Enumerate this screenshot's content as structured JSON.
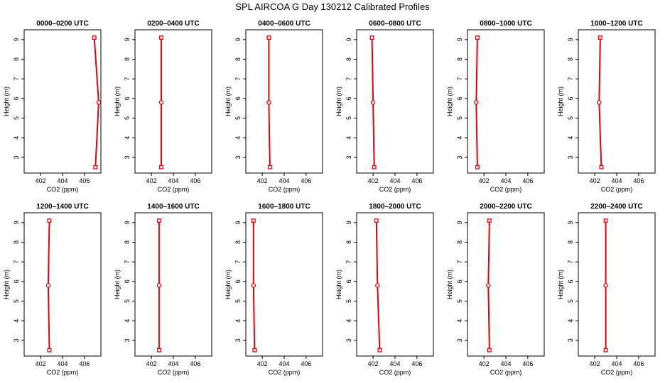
{
  "title": "SPL AIRCOA G  Day 130212  Calibrated Profiles",
  "colors": {
    "line": "#e8000b",
    "marker": "#e8000b",
    "axes": "#000000"
  },
  "chart_data": [
    {
      "type": "line",
      "title": "0000–0200 UTC",
      "xlabel": "CO2 (ppm)",
      "ylabel": "Height (m)",
      "xlim": [
        400.5,
        407.5
      ],
      "ylim": [
        2.2,
        9.5
      ],
      "xticks": [
        402,
        404,
        406
      ],
      "yticks": [
        3,
        4,
        5,
        6,
        7,
        8,
        9
      ],
      "series": [
        {
          "x": [
            406.9,
            407.3,
            407.0
          ],
          "y": [
            9.1,
            5.8,
            2.5
          ]
        }
      ]
    },
    {
      "type": "line",
      "title": "0200–0400 UTC",
      "xlabel": "CO2 (ppm)",
      "ylabel": "Height (m)",
      "xlim": [
        400.5,
        407.5
      ],
      "ylim": [
        2.2,
        9.5
      ],
      "xticks": [
        402,
        404,
        406
      ],
      "yticks": [
        3,
        4,
        5,
        6,
        7,
        8,
        9
      ],
      "series": [
        {
          "x": [
            402.9,
            402.9,
            402.9
          ],
          "y": [
            9.1,
            5.8,
            2.5
          ]
        }
      ]
    },
    {
      "type": "line",
      "title": "0400–0600 UTC",
      "xlabel": "CO2 (ppm)",
      "ylabel": "Height (m)",
      "xlim": [
        400.5,
        407.5
      ],
      "ylim": [
        2.2,
        9.5
      ],
      "xticks": [
        402,
        404,
        406
      ],
      "yticks": [
        3,
        4,
        5,
        6,
        7,
        8,
        9
      ],
      "series": [
        {
          "x": [
            402.6,
            402.6,
            402.7
          ],
          "y": [
            9.1,
            5.8,
            2.5
          ]
        }
      ]
    },
    {
      "type": "line",
      "title": "0600–0800 UTC",
      "xlabel": "CO2 (ppm)",
      "ylabel": "Height (m)",
      "xlim": [
        400.5,
        407.5
      ],
      "ylim": [
        2.2,
        9.5
      ],
      "xticks": [
        402,
        404,
        406
      ],
      "yticks": [
        3,
        4,
        5,
        6,
        7,
        8,
        9
      ],
      "series": [
        {
          "x": [
            401.9,
            402.0,
            402.1
          ],
          "y": [
            9.1,
            5.8,
            2.5
          ]
        }
      ]
    },
    {
      "type": "line",
      "title": "0800–1000 UTC",
      "xlabel": "CO2 (ppm)",
      "ylabel": "Height (m)",
      "xlim": [
        400.5,
        407.5
      ],
      "ylim": [
        2.2,
        9.5
      ],
      "xticks": [
        402,
        404,
        406
      ],
      "yticks": [
        3,
        4,
        5,
        6,
        7,
        8,
        9
      ],
      "series": [
        {
          "x": [
            401.4,
            401.3,
            401.4
          ],
          "y": [
            9.1,
            5.8,
            2.5
          ]
        }
      ]
    },
    {
      "type": "line",
      "title": "1000–1200 UTC",
      "xlabel": "CO2 (ppm)",
      "ylabel": "Height (m)",
      "xlim": [
        400.5,
        407.5
      ],
      "ylim": [
        2.2,
        9.5
      ],
      "xticks": [
        402,
        404,
        406
      ],
      "yticks": [
        3,
        4,
        5,
        6,
        7,
        8,
        9
      ],
      "series": [
        {
          "x": [
            402.5,
            402.4,
            402.6
          ],
          "y": [
            9.1,
            5.8,
            2.5
          ]
        }
      ]
    },
    {
      "type": "line",
      "title": "1200–1400 UTC",
      "xlabel": "CO2 (ppm)",
      "ylabel": "Height (m)",
      "xlim": [
        400.5,
        407.5
      ],
      "ylim": [
        2.2,
        9.5
      ],
      "xticks": [
        402,
        404,
        406
      ],
      "yticks": [
        3,
        4,
        5,
        6,
        7,
        8,
        9
      ],
      "series": [
        {
          "x": [
            402.8,
            402.7,
            402.8
          ],
          "y": [
            9.1,
            5.8,
            2.5
          ]
        }
      ]
    },
    {
      "type": "line",
      "title": "1400–1600 UTC",
      "xlabel": "CO2 (ppm)",
      "ylabel": "Height (m)",
      "xlim": [
        400.5,
        407.5
      ],
      "ylim": [
        2.2,
        9.5
      ],
      "xticks": [
        402,
        404,
        406
      ],
      "yticks": [
        3,
        4,
        5,
        6,
        7,
        8,
        9
      ],
      "series": [
        {
          "x": [
            402.7,
            402.7,
            402.7
          ],
          "y": [
            9.1,
            5.8,
            2.5
          ]
        }
      ]
    },
    {
      "type": "line",
      "title": "1600–1800 UTC",
      "xlabel": "CO2 (ppm)",
      "ylabel": "Height (m)",
      "xlim": [
        400.5,
        407.5
      ],
      "ylim": [
        2.2,
        9.5
      ],
      "xticks": [
        402,
        404,
        406
      ],
      "yticks": [
        3,
        4,
        5,
        6,
        7,
        8,
        9
      ],
      "series": [
        {
          "x": [
            401.2,
            401.2,
            401.3
          ],
          "y": [
            9.1,
            5.8,
            2.5
          ]
        }
      ]
    },
    {
      "type": "line",
      "title": "1800–2000 UTC",
      "xlabel": "CO2 (ppm)",
      "ylabel": "Height (m)",
      "xlim": [
        400.5,
        407.5
      ],
      "ylim": [
        2.2,
        9.5
      ],
      "xticks": [
        402,
        404,
        406
      ],
      "yticks": [
        3,
        4,
        5,
        6,
        7,
        8,
        9
      ],
      "series": [
        {
          "x": [
            402.3,
            402.4,
            402.6
          ],
          "y": [
            9.1,
            5.8,
            2.5
          ]
        }
      ]
    },
    {
      "type": "line",
      "title": "2000–2200 UTC",
      "xlabel": "CO2 (ppm)",
      "ylabel": "Height (m)",
      "xlim": [
        400.5,
        407.5
      ],
      "ylim": [
        2.2,
        9.5
      ],
      "xticks": [
        402,
        404,
        406
      ],
      "yticks": [
        3,
        4,
        5,
        6,
        7,
        8,
        9
      ],
      "series": [
        {
          "x": [
            402.5,
            402.4,
            402.5
          ],
          "y": [
            9.1,
            5.8,
            2.5
          ]
        }
      ]
    },
    {
      "type": "line",
      "title": "2200–2400 UTC",
      "xlabel": "CO2 (ppm)",
      "ylabel": "Height (m)",
      "xlim": [
        400.5,
        407.5
      ],
      "ylim": [
        2.2,
        9.5
      ],
      "xticks": [
        402,
        404,
        406
      ],
      "yticks": [
        3,
        4,
        5,
        6,
        7,
        8,
        9
      ],
      "series": [
        {
          "x": [
            403.0,
            403.0,
            403.0
          ],
          "y": [
            9.1,
            5.8,
            2.5
          ]
        }
      ]
    }
  ]
}
